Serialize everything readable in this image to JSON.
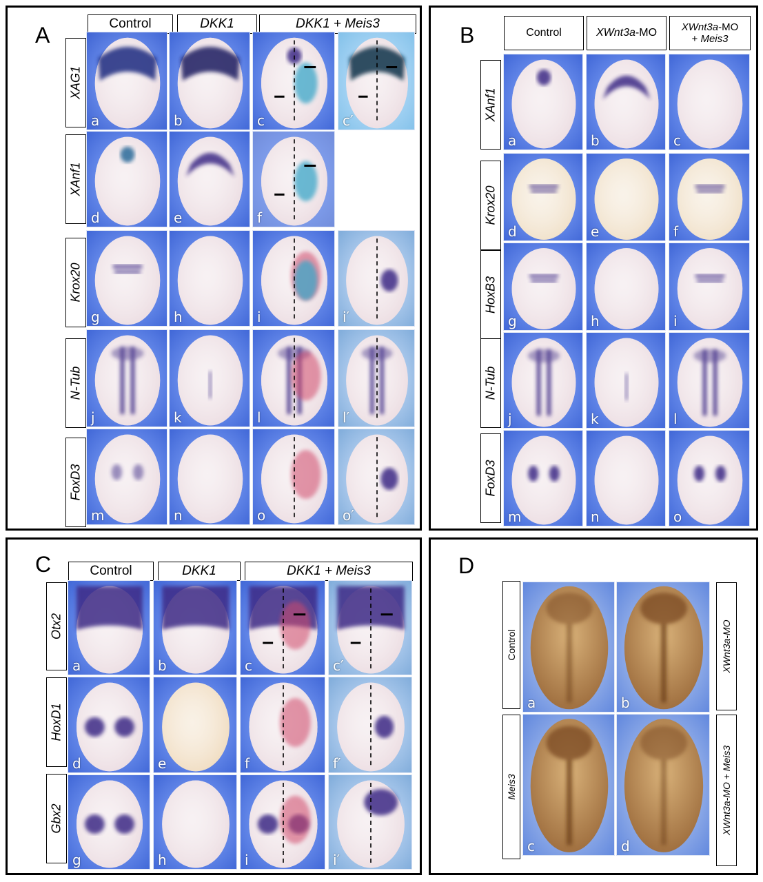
{
  "panels": {
    "A": {
      "letter": "A",
      "col_headers": [
        "Control",
        "DKK1",
        "DKK1 + Meis3"
      ],
      "rows": [
        "XAG1",
        "XAnf1",
        "Krox20",
        "N-Tub",
        "FoxD3"
      ],
      "subs": [
        "a",
        "b",
        "c",
        "c′",
        "d",
        "e",
        "f",
        "g",
        "h",
        "i",
        "i′",
        "j",
        "k",
        "l",
        "l′",
        "m",
        "n",
        "o",
        "o′"
      ]
    },
    "B": {
      "letter": "B",
      "col_headers": [
        "Control",
        "XWnt3a-MO",
        "XWnt3a-MO + Meis3"
      ],
      "col_header_parts": {
        "c2_gene": "XWnt3a",
        "c2_rest": "-MO",
        "c3_line1_gene": "XWnt3a",
        "c3_line1_rest": "-MO",
        "c3_line2_plus": "+ ",
        "c3_line2_gene": "Meis3"
      },
      "rows": [
        "XAnf1",
        "Krox20",
        "HoxB3",
        "N-Tub",
        "FoxD3"
      ],
      "subs": [
        "a",
        "b",
        "c",
        "d",
        "e",
        "f",
        "g",
        "h",
        "i",
        "j",
        "k",
        "l",
        "m",
        "n",
        "o"
      ]
    },
    "C": {
      "letter": "C",
      "col_headers": [
        "Control",
        "DKK1",
        "DKK1 + Meis3"
      ],
      "rows": [
        "Otx2",
        "HoxD1",
        "Gbx2"
      ],
      "subs": [
        "a",
        "b",
        "c",
        "c′",
        "d",
        "e",
        "f",
        "f′",
        "g",
        "h",
        "i",
        "i′"
      ]
    },
    "D": {
      "letter": "D",
      "left_labels": [
        "Control",
        "Meis3"
      ],
      "right_labels": [
        "XWnt3a-MO",
        "XWnt3a-MO + Meis3"
      ],
      "subs": [
        "a",
        "b",
        "c",
        "d"
      ]
    }
  },
  "colors": {
    "stain": "#4a2a8a",
    "embryo": "#e8d8e0",
    "background": "#3a5fd0",
    "red_tracer": "#d0486a",
    "cyan_tracer": "#3aa6c8",
    "tadpole": "#c8a070"
  }
}
